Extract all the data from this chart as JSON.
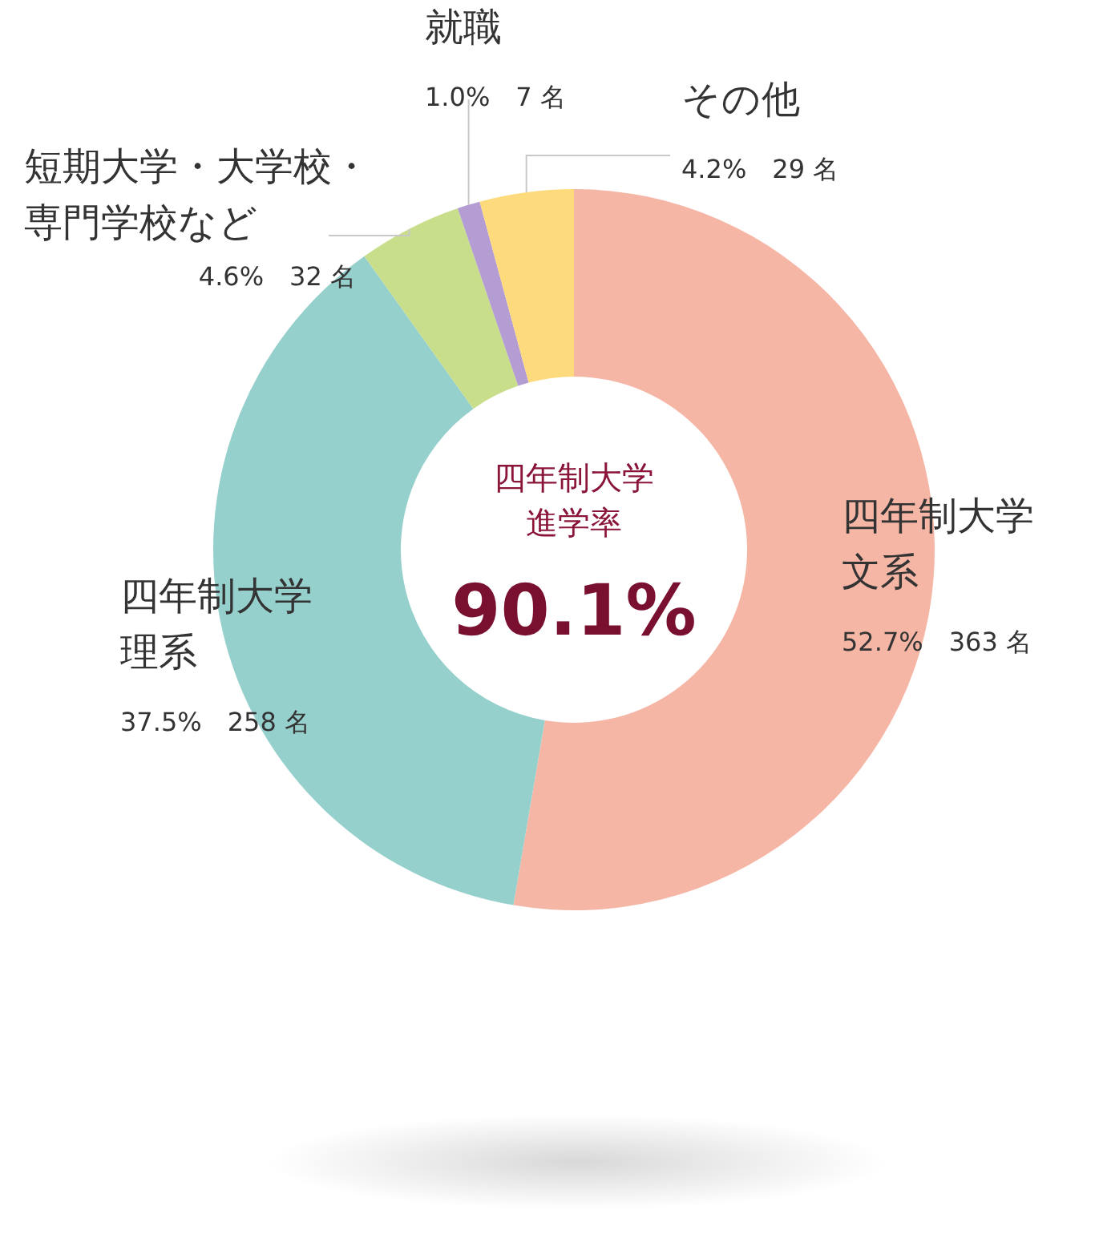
{
  "chart_data": {
    "type": "donut",
    "categories": [
      "四年制大学文系",
      "四年制大学理系",
      "短期大学・大学校・専門学校など",
      "就職",
      "その他"
    ],
    "values": [
      363,
      258,
      32,
      7,
      29
    ],
    "colors": [
      "#f5b6a6",
      "#96d0cd",
      "#c8de8a",
      "#b49dd2",
      "#fdda7c"
    ],
    "value_labels": [
      "52.7%　363 名",
      "37.5%　258 名",
      "4.6%　32 名",
      "1.0%　7 名",
      "4.2%　29 名"
    ],
    "annotations": [
      "四年制大学進学率",
      "90.1%"
    ]
  }
}
